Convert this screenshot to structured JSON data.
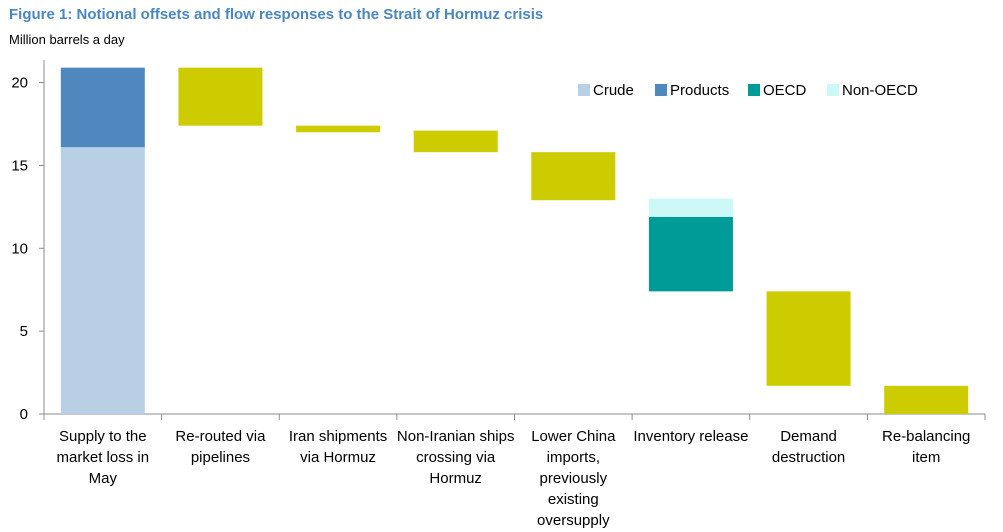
{
  "chart_data": {
    "type": "waterfall",
    "title": "Figure 1: Notional offsets and flow responses to the Strait of Hormuz crisis",
    "subtitle": "Million barrels a day",
    "ylim": [
      0,
      21
    ],
    "yticks": [
      0,
      5,
      10,
      15,
      20
    ],
    "categories": [
      [
        "Supply to the",
        "market loss in",
        "May"
      ],
      [
        "Re-routed via",
        "pipelines"
      ],
      [
        "Iran shipments",
        "via Hormuz"
      ],
      [
        "Non-Iranian ships",
        "crossing via",
        "Hormuz"
      ],
      [
        "Lower China",
        "imports,",
        "previously",
        "existing",
        "oversupply"
      ],
      [
        "Inventory release"
      ],
      [
        "Demand",
        "destruction"
      ],
      [
        "Re-balancing",
        "item"
      ]
    ],
    "bars": [
      [
        {
          "series": "Crude",
          "from": 0,
          "to": 16.1
        },
        {
          "series": "Products",
          "from": 16.1,
          "to": 20.9
        }
      ],
      [
        {
          "series": "Offset",
          "from": 17.4,
          "to": 20.9
        }
      ],
      [
        {
          "series": "Offset",
          "from": 17.0,
          "to": 17.4
        }
      ],
      [
        {
          "series": "Offset",
          "from": 15.8,
          "to": 17.1
        }
      ],
      [
        {
          "series": "Offset",
          "from": 12.9,
          "to": 15.8
        }
      ],
      [
        {
          "series": "OECD",
          "from": 7.4,
          "to": 11.9
        },
        {
          "series": "Non-OECD",
          "from": 11.9,
          "to": 13.0
        }
      ],
      [
        {
          "series": "Offset",
          "from": 1.7,
          "to": 7.4
        }
      ],
      [
        {
          "series": "Offset",
          "from": 0,
          "to": 1.7
        }
      ]
    ],
    "legend": {
      "placement": "top-right",
      "entries": [
        {
          "name": "Crude",
          "series": "Crude"
        },
        {
          "name": "Products",
          "series": "Products"
        },
        {
          "name": "OECD",
          "series": "OECD"
        },
        {
          "name": "Non-OECD",
          "series": "Non-OECD"
        }
      ]
    },
    "colors": {
      "Crude": "#b8cfe6",
      "Products": "#4f88bf",
      "OECD": "#009b96",
      "Non-OECD": "#ccf8f8",
      "Offset": "#cccc00"
    },
    "grid": false
  }
}
